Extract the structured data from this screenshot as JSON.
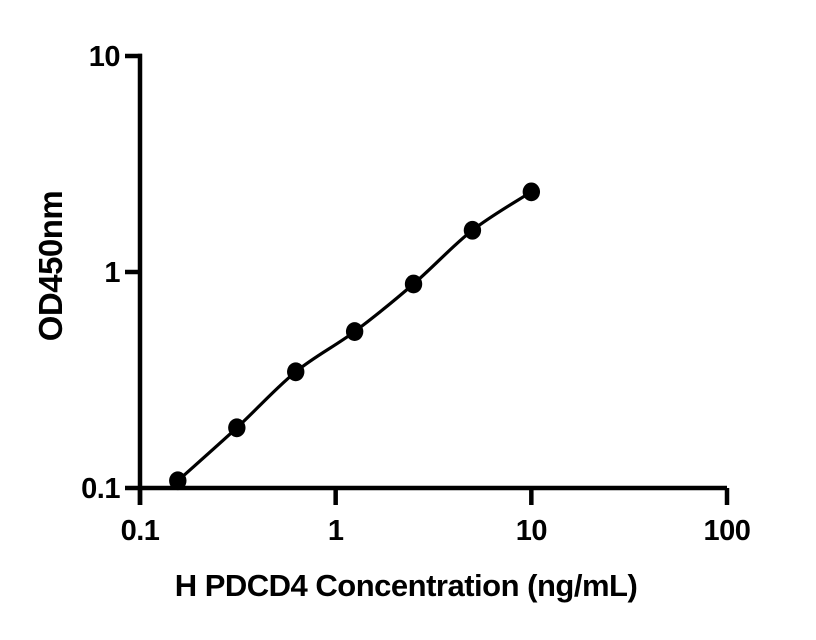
{
  "figure": {
    "background_color": "#ffffff",
    "foreground_color": "#000000"
  },
  "chart_data": {
    "type": "scatter",
    "subtype": "standard-curve-with-fitted-line",
    "xlabel": "H PDCD4 Concentration (ng/mL)",
    "ylabel": "OD450nm",
    "x_scale": "log10",
    "y_scale": "log10",
    "xlim": [
      0.1,
      100
    ],
    "ylim": [
      0.1,
      10
    ],
    "x_tick_values": [
      0.1,
      1,
      10,
      100
    ],
    "x_tick_labels": [
      "0.1",
      "1",
      "10",
      "100"
    ],
    "y_tick_values": [
      0.1,
      1,
      10
    ],
    "y_tick_labels": [
      "0.1",
      "1",
      "10"
    ],
    "grid": false,
    "legend": false,
    "marker": "filled-black-circle",
    "line_color": "#000000",
    "marker_color": "#000000",
    "x": [
      0.156,
      0.3125,
      0.625,
      1.25,
      2.5,
      5,
      10
    ],
    "y": [
      0.108,
      0.19,
      0.345,
      0.53,
      0.88,
      1.56,
      2.35
    ]
  }
}
